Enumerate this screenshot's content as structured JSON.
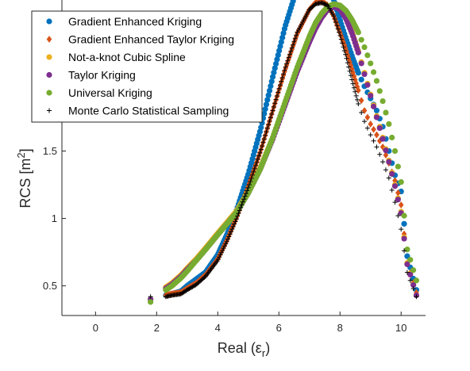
{
  "chart_data": {
    "type": "scatter",
    "title": "",
    "xlabel": "Real (ε",
    "xlabel_sub": "r",
    "xlabel_close": ")",
    "ylabel": "RCS [m",
    "ylabel_sup": "2",
    "ylabel_close": "]",
    "xlim": [
      -1.1,
      10.8
    ],
    "ylim": [
      0.28,
      2.62
    ],
    "xticks": [
      0,
      2,
      4,
      6,
      8,
      10
    ],
    "xtick_labels": [
      "0",
      "2",
      "4",
      "6",
      "8",
      "10"
    ],
    "yticks": [
      0.5,
      1,
      1.5,
      2
    ],
    "ytick_labels": [
      "0.5",
      "1",
      "1.5",
      "2"
    ],
    "grid": false,
    "legend_position": "top-left",
    "series": [
      {
        "name": "Gradient Enhanced Kriging",
        "marker": "circle",
        "color": "#0072BD",
        "x": [
          1.8,
          2.3,
          2.5,
          2.8,
          3.0,
          3.3,
          3.6,
          4.0,
          4.3,
          4.6,
          5.0,
          5.4,
          5.8,
          6.2,
          6.6,
          7.0,
          7.2,
          7.4,
          7.6,
          7.8,
          8.0,
          8.2,
          8.4,
          8.6,
          8.8,
          9.0,
          9.2,
          9.4,
          9.6,
          9.8,
          10.0,
          10.2,
          10.5
        ],
        "y": [
          0.4,
          0.43,
          0.44,
          0.46,
          0.5,
          0.55,
          0.6,
          0.73,
          0.88,
          1.05,
          1.33,
          1.66,
          2.05,
          2.42,
          2.71,
          2.85,
          2.86,
          2.83,
          2.75,
          2.62,
          2.47,
          2.33,
          2.2,
          2.08,
          1.98,
          1.89,
          1.8,
          1.68,
          1.5,
          1.32,
          1.2,
          0.72,
          0.47
        ]
      },
      {
        "name": "Gradient Enhanced Taylor Kriging",
        "marker": "diamond",
        "color": "#D95319",
        "x": [
          1.8,
          2.3,
          2.5,
          2.8,
          3.0,
          3.3,
          3.6,
          4.0,
          4.3,
          4.6,
          5.0,
          5.4,
          5.8,
          6.2,
          6.6,
          7.0,
          7.2,
          7.4,
          7.6,
          7.8,
          8.0,
          8.2,
          8.4,
          8.6,
          8.8,
          9.0,
          9.2,
          9.4,
          9.6,
          9.8,
          10.0,
          10.2,
          10.5
        ],
        "y": [
          0.4,
          0.43,
          0.44,
          0.45,
          0.48,
          0.52,
          0.58,
          0.7,
          0.84,
          1.0,
          1.24,
          1.5,
          1.8,
          2.1,
          2.37,
          2.55,
          2.6,
          2.61,
          2.58,
          2.5,
          2.38,
          2.25,
          2.1,
          1.95,
          1.8,
          1.7,
          1.62,
          1.53,
          1.41,
          1.28,
          1.1,
          0.67,
          0.45
        ]
      },
      {
        "name": "Not-a-knot Cubic Spline",
        "marker": "circle",
        "color": "#EDB120",
        "x": [
          1.8,
          2.3,
          2.5,
          2.8,
          3.0,
          3.3,
          3.6,
          4.0,
          4.3,
          4.6,
          5.0,
          5.4,
          5.8,
          6.2,
          6.6,
          7.0,
          7.2,
          7.4,
          7.6,
          7.8,
          8.0,
          8.2,
          8.4,
          8.6,
          8.8,
          9.0,
          9.2,
          9.4,
          9.6,
          9.8,
          10.0,
          10.2,
          10.5
        ],
        "y": [
          0.4,
          0.49,
          0.52,
          0.58,
          0.63,
          0.7,
          0.78,
          0.89,
          0.97,
          1.05,
          1.2,
          1.38,
          1.6,
          1.85,
          2.1,
          2.32,
          2.42,
          2.5,
          2.56,
          2.58,
          2.56,
          2.49,
          2.38,
          2.24,
          2.08,
          1.92,
          1.76,
          1.6,
          1.43,
          1.25,
          1.05,
          0.67,
          0.43
        ]
      },
      {
        "name": "Taylor Kriging",
        "marker": "circle",
        "color": "#7E2F8E",
        "x": [
          1.8,
          2.3,
          2.5,
          2.8,
          3.0,
          3.3,
          3.6,
          4.0,
          4.3,
          4.6,
          5.0,
          5.4,
          5.8,
          6.2,
          6.6,
          7.0,
          7.2,
          7.4,
          7.6,
          7.8,
          8.0,
          8.2,
          8.4,
          8.6,
          8.8,
          9.0,
          9.2,
          9.4,
          9.6,
          9.8,
          10.0,
          10.2,
          10.5
        ],
        "y": [
          0.4,
          0.48,
          0.51,
          0.57,
          0.62,
          0.69,
          0.77,
          0.88,
          0.96,
          1.04,
          1.19,
          1.37,
          1.59,
          1.84,
          2.09,
          2.31,
          2.41,
          2.49,
          2.55,
          2.57,
          2.55,
          2.48,
          2.37,
          2.23,
          2.07,
          1.91,
          1.75,
          1.59,
          1.42,
          1.24,
          1.04,
          0.66,
          0.43
        ]
      },
      {
        "name": "Universal Kriging",
        "marker": "circle",
        "color": "#77AC30",
        "x": [
          1.8,
          2.3,
          2.5,
          2.8,
          3.0,
          3.3,
          3.6,
          4.0,
          4.3,
          4.6,
          5.0,
          5.4,
          5.8,
          6.2,
          6.6,
          7.0,
          7.2,
          7.4,
          7.6,
          7.8,
          8.0,
          8.2,
          8.4,
          8.6,
          8.8,
          9.0,
          9.2,
          9.4,
          9.6,
          9.8,
          10.0,
          10.2,
          10.5
        ],
        "y": [
          0.38,
          0.47,
          0.5,
          0.56,
          0.61,
          0.69,
          0.77,
          0.88,
          0.96,
          1.04,
          1.19,
          1.37,
          1.6,
          1.86,
          2.12,
          2.35,
          2.45,
          2.52,
          2.57,
          2.59,
          2.58,
          2.54,
          2.47,
          2.38,
          2.27,
          2.15,
          2.02,
          1.87,
          1.7,
          1.5,
          1.27,
          0.77,
          0.54
        ]
      },
      {
        "name": "Monte Carlo Statistical Sampling",
        "marker": "plus",
        "color": "#000000",
        "x": [
          1.8,
          2.3,
          2.5,
          2.8,
          3.0,
          3.3,
          3.6,
          4.0,
          4.3,
          4.6,
          5.0,
          5.4,
          5.8,
          6.2,
          6.6,
          7.0,
          7.2,
          7.4,
          7.6,
          7.8,
          8.0,
          8.2,
          8.4,
          8.6,
          8.8,
          9.0,
          9.2,
          9.4,
          9.6,
          9.8,
          10.0,
          10.2,
          10.5
        ],
        "y": [
          0.42,
          0.42,
          0.43,
          0.44,
          0.47,
          0.51,
          0.57,
          0.69,
          0.83,
          0.99,
          1.23,
          1.5,
          1.8,
          2.11,
          2.38,
          2.55,
          2.59,
          2.6,
          2.58,
          2.5,
          2.36,
          2.2,
          2.02,
          1.85,
          1.72,
          1.62,
          1.53,
          1.42,
          1.3,
          1.12,
          0.92,
          0.6,
          0.42
        ]
      }
    ]
  }
}
